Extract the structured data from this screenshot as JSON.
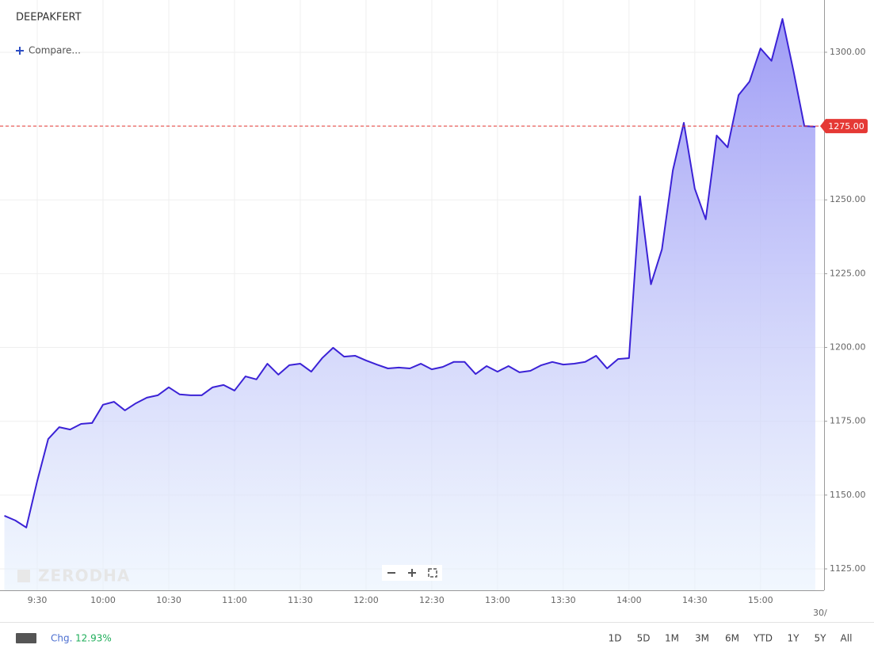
{
  "header": {
    "symbol": "DEEPAKFERT",
    "compare": "Compare..."
  },
  "watermark": "ZERODHA",
  "footer": {
    "change_label": "Chg.",
    "change_value": "12.93%",
    "ranges": [
      "1D",
      "5D",
      "1M",
      "3M",
      "6M",
      "YTD",
      "1Y",
      "5Y",
      "All"
    ]
  },
  "chart_data": {
    "type": "area",
    "x": [
      "9:15",
      "9:20",
      "9:25",
      "9:30",
      "9:35",
      "9:40",
      "9:45",
      "9:50",
      "9:55",
      "10:00",
      "10:05",
      "10:10",
      "10:15",
      "10:20",
      "10:25",
      "10:30",
      "10:35",
      "10:40",
      "10:45",
      "10:50",
      "10:55",
      "11:00",
      "11:05",
      "11:10",
      "11:15",
      "11:20",
      "11:25",
      "11:30",
      "11:35",
      "11:40",
      "11:45",
      "11:50",
      "11:55",
      "12:00",
      "12:05",
      "12:10",
      "12:15",
      "12:20",
      "12:25",
      "12:30",
      "12:35",
      "12:40",
      "12:45",
      "12:50",
      "12:55",
      "13:00",
      "13:05",
      "13:10",
      "13:15",
      "13:20",
      "13:25",
      "13:30",
      "13:35",
      "13:40",
      "13:45",
      "13:50",
      "13:55",
      "14:00",
      "14:05",
      "14:10",
      "14:15",
      "14:20",
      "14:25",
      "14:30",
      "14:35",
      "14:40",
      "14:45",
      "14:50",
      "14:55",
      "15:00",
      "15:05",
      "15:10",
      "15:15",
      "15:20",
      "15:25"
    ],
    "series": [
      {
        "name": "DEEPAKFERT",
        "color": "#3b22d6",
        "values": [
          1143.0,
          1141.4,
          1139.0,
          1154.8,
          1169.0,
          1173.0,
          1172.2,
          1174.1,
          1174.4,
          1180.6,
          1181.6,
          1178.7,
          1181.1,
          1183.0,
          1183.8,
          1186.5,
          1184.1,
          1183.8,
          1183.8,
          1186.5,
          1187.3,
          1185.4,
          1190.2,
          1189.2,
          1194.5,
          1190.8,
          1194.0,
          1194.5,
          1191.8,
          1196.4,
          1199.9,
          1196.9,
          1197.2,
          1195.6,
          1194.2,
          1192.9,
          1193.2,
          1192.9,
          1194.5,
          1192.6,
          1193.4,
          1195.1,
          1195.1,
          1191.0,
          1193.7,
          1191.8,
          1193.7,
          1191.6,
          1192.1,
          1194.0,
          1195.1,
          1194.2,
          1194.5,
          1195.1,
          1197.2,
          1192.9,
          1196.1,
          1196.4,
          1251.2,
          1221.4,
          1233.2,
          1260.0,
          1276.1,
          1253.8,
          1243.4,
          1271.8,
          1267.8,
          1285.5,
          1290.1,
          1301.3,
          1297.1,
          1311.3,
          1293.8,
          1275.0,
          1274.8
        ]
      }
    ],
    "xlim": [
      "9:13",
      "15:29"
    ],
    "xticks": [
      "9:30",
      "10:00",
      "10:30",
      "11:00",
      "11:30",
      "12:00",
      "12:30",
      "13:00",
      "13:30",
      "14:00",
      "14:30",
      "15:00"
    ],
    "date_label": "30/",
    "ylim": [
      1117.75,
      1317.7
    ],
    "yticks": [
      {
        "value": 1125,
        "label": "1125.00"
      },
      {
        "value": 1150,
        "label": "1150.00"
      },
      {
        "value": 1175,
        "label": "1175.00"
      },
      {
        "value": 1200,
        "label": "1200.00"
      },
      {
        "value": 1225,
        "label": "1225.00"
      },
      {
        "value": 1250,
        "label": "1250.00"
      },
      {
        "value": 1275,
        "label": "1275.00"
      },
      {
        "value": 1300,
        "label": "1300.00"
      }
    ],
    "current_price": {
      "value": 1275,
      "label": "1275.00",
      "color": "#e53935"
    },
    "grid": true
  }
}
